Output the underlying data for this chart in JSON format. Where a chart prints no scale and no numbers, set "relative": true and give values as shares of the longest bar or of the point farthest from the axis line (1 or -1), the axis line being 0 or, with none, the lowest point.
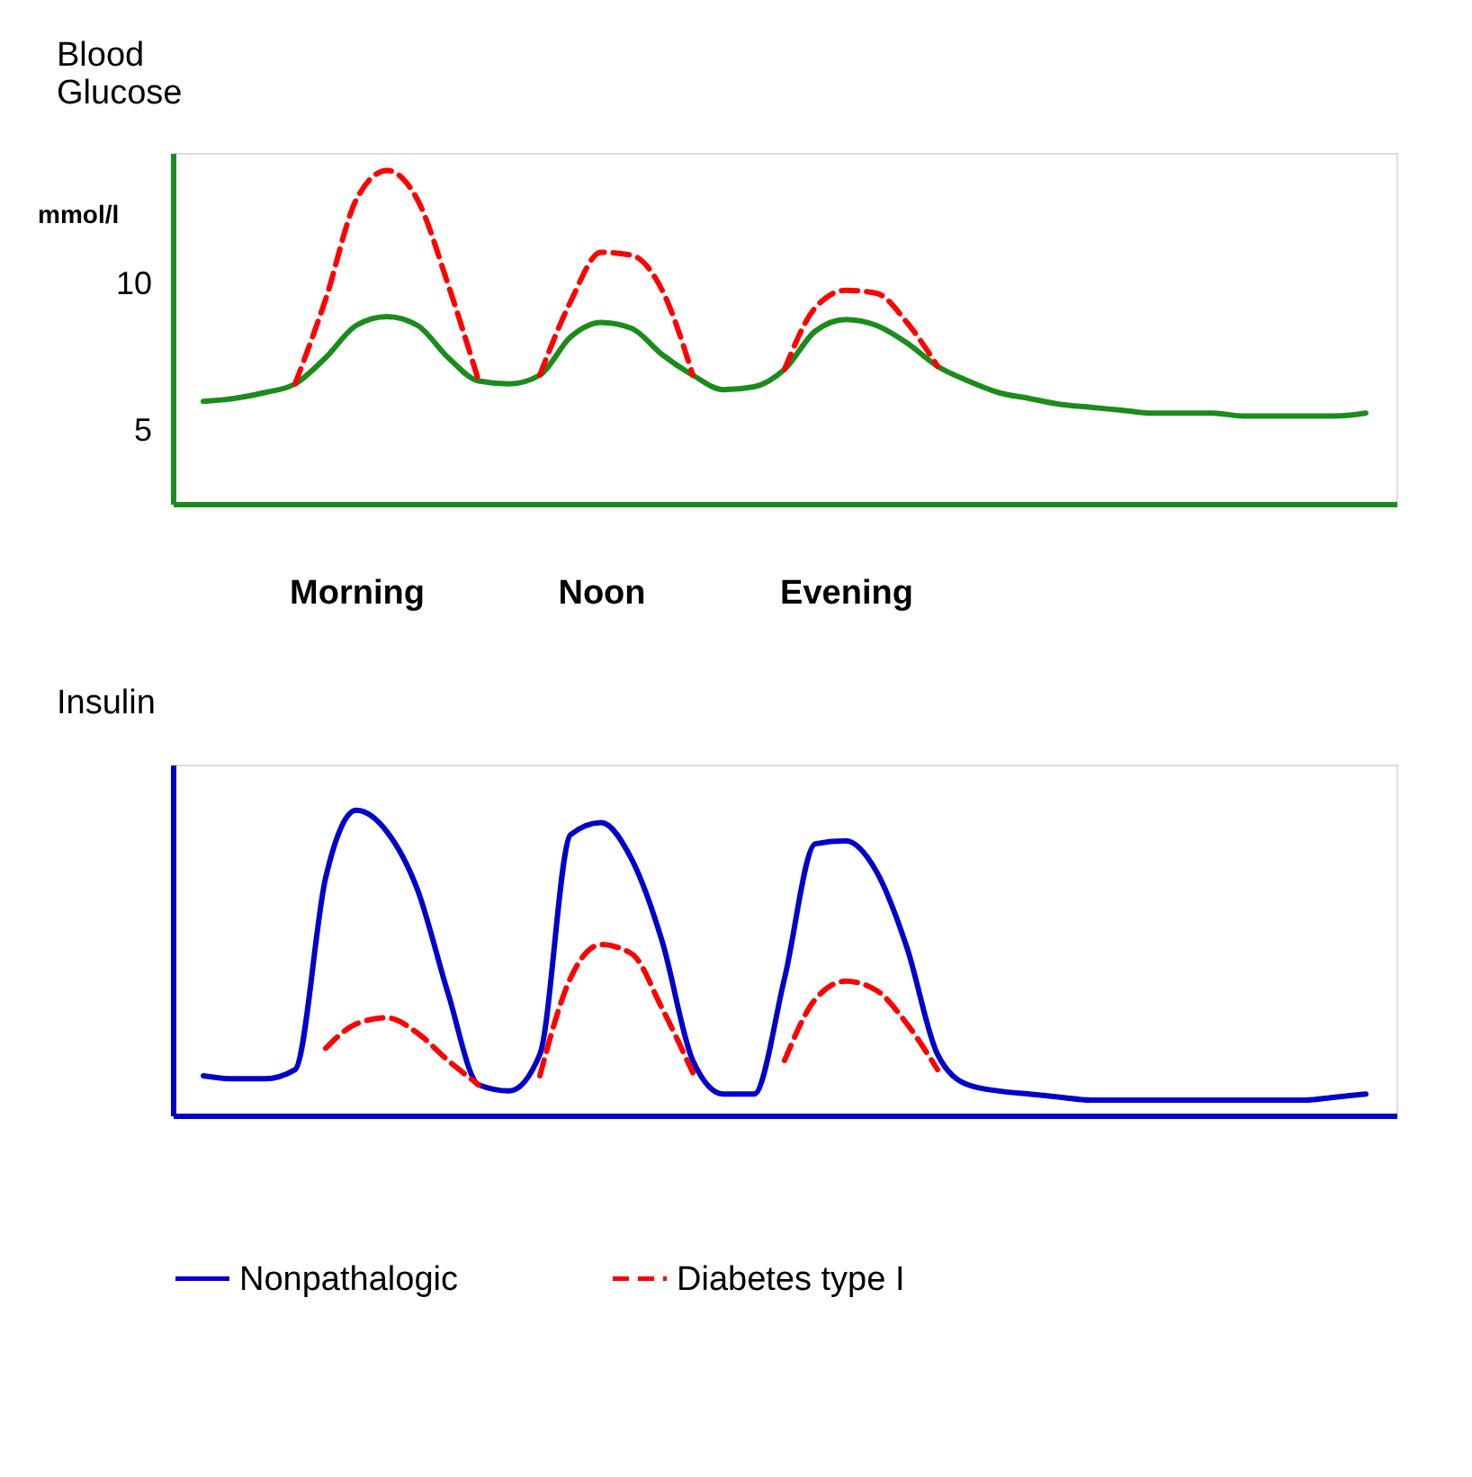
{
  "chart_data": [
    {
      "type": "line",
      "ylabel": "Blood Glucose",
      "annotations": [
        "mmol/l"
      ],
      "categories": [
        null,
        null,
        null,
        null,
        null,
        null,
        "Morning",
        null,
        null,
        null,
        null,
        null,
        null,
        null,
        "Noon",
        null,
        null,
        null,
        null,
        null,
        null,
        null,
        "Evening",
        null,
        null,
        null,
        null,
        null,
        null,
        null,
        null,
        null,
        null,
        null,
        null,
        null,
        null,
        null,
        null,
        null,
        null
      ],
      "ylim": [
        2.5,
        14.5
      ],
      "yticks": [
        5,
        10
      ],
      "series": [
        {
          "color": "#1a8c1a",
          "line_style": "solid",
          "values": [
            null,
            6.0,
            6.1,
            6.3,
            6.6,
            7.5,
            8.6,
            8.9,
            8.6,
            7.5,
            6.7,
            6.6,
            6.9,
            8.2,
            8.7,
            8.5,
            7.6,
            6.9,
            6.4,
            6.5,
            7.1,
            8.4,
            8.8,
            8.6,
            8.0,
            7.2,
            6.7,
            6.3,
            6.1,
            5.9,
            5.8,
            5.7,
            5.6,
            5.6,
            5.6,
            5.5,
            5.5,
            5.5,
            5.5,
            5.6,
            null
          ]
        },
        {
          "color": "#ff0000",
          "line_style": "dashed",
          "values": [
            null,
            null,
            null,
            null,
            6.6,
            9.5,
            12.9,
            13.9,
            12.9,
            10.0,
            6.7,
            null,
            6.9,
            9.4,
            11.1,
            11.0,
            9.8,
            6.9,
            null,
            null,
            7.1,
            9.2,
            9.8,
            9.7,
            8.7,
            7.2,
            null,
            null,
            null,
            null,
            null,
            null,
            null,
            null,
            null,
            null,
            null,
            null,
            null,
            null,
            null
          ]
        }
      ]
    },
    {
      "type": "line",
      "ylabel": "Insulin",
      "relative": true,
      "categories": [
        null,
        null,
        null,
        null,
        null,
        null,
        null,
        null,
        null,
        null,
        null,
        null,
        null,
        null,
        null,
        null,
        null,
        null,
        null,
        null,
        null,
        null,
        null,
        null,
        null,
        null,
        null,
        null,
        null,
        null,
        null,
        null,
        null,
        null,
        null,
        null,
        null,
        null,
        null,
        null,
        null
      ],
      "legend": "bottom",
      "series": [
        {
          "name": "Nonpathalogic",
          "color": "#0000cc",
          "line_style": "solid",
          "values": [
            null,
            0.13,
            0.12,
            0.12,
            0.15,
            0.78,
            1.0,
            0.93,
            0.74,
            0.4,
            0.1,
            0.08,
            0.2,
            0.92,
            0.96,
            0.84,
            0.57,
            0.18,
            0.07,
            0.07,
            0.45,
            0.89,
            0.9,
            0.8,
            0.55,
            0.2,
            0.1,
            0.08,
            0.07,
            0.06,
            0.05,
            0.05,
            0.05,
            0.05,
            0.05,
            0.05,
            0.05,
            0.05,
            0.06,
            0.07,
            null
          ]
        },
        {
          "name": "Diabetes type I",
          "color": "#ff0000",
          "line_style": "dashed",
          "values": [
            null,
            null,
            null,
            null,
            null,
            0.22,
            0.3,
            0.32,
            0.27,
            0.18,
            0.1,
            null,
            0.13,
            0.45,
            0.56,
            0.53,
            0.35,
            0.14,
            null,
            null,
            0.18,
            0.38,
            0.44,
            0.41,
            0.3,
            0.15,
            null,
            null,
            null,
            null,
            null,
            null,
            null,
            null,
            null,
            null,
            null,
            null,
            null,
            null,
            null
          ]
        }
      ]
    }
  ]
}
